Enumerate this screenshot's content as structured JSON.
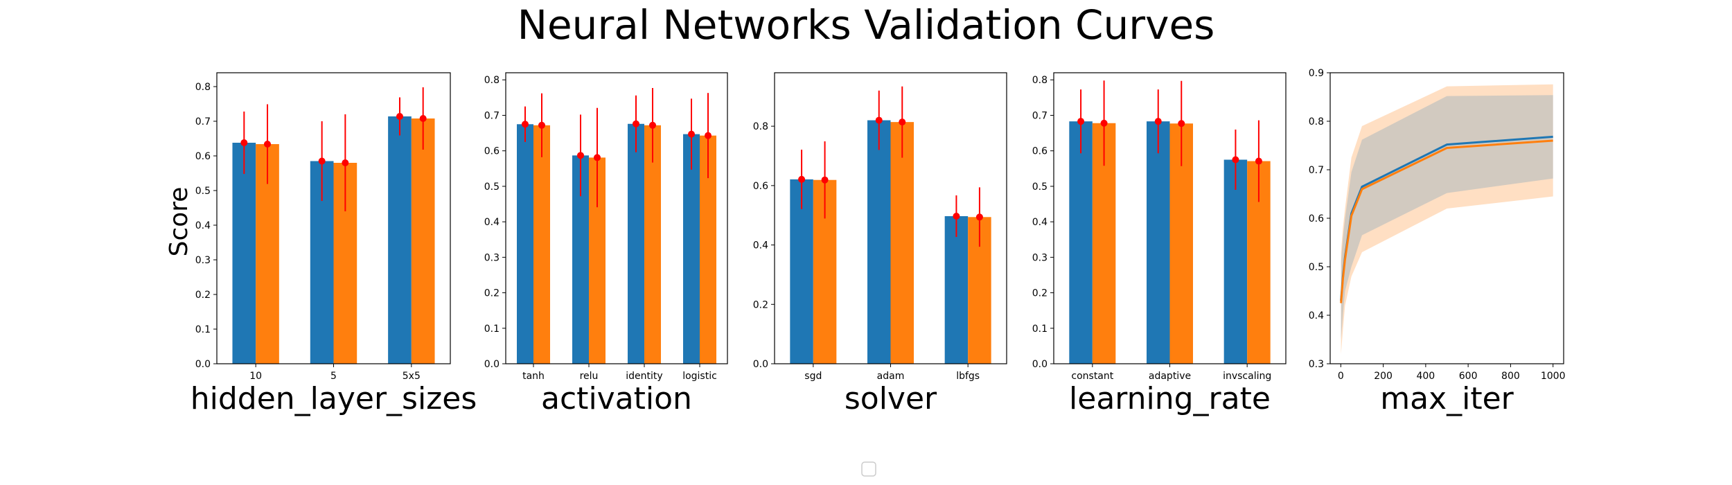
{
  "figure": {
    "title": "Neural Networks Validation Curves",
    "ylabel": "Score"
  },
  "colors": {
    "train": "#1f77b4",
    "test": "#ff7f0e",
    "error": "#ff0000"
  },
  "chart_data": [
    {
      "type": "bar",
      "xlabel": "hidden_layer_sizes",
      "categories": [
        "10",
        "5",
        "5x5"
      ],
      "ylim": [
        0,
        0.84
      ],
      "yticks": [
        "0.0",
        "0.1",
        "0.2",
        "0.3",
        "0.4",
        "0.5",
        "0.6",
        "0.7",
        "0.8"
      ],
      "series": [
        {
          "values": [
            0.638,
            0.585,
            0.714
          ],
          "errors": [
            0.09,
            0.115,
            0.055
          ]
        },
        {
          "values": [
            0.634,
            0.58,
            0.708
          ],
          "errors": [
            0.115,
            0.14,
            0.09
          ]
        }
      ]
    },
    {
      "type": "bar",
      "xlabel": "activation",
      "categories": [
        "tanh",
        "relu",
        "identity",
        "logistic"
      ],
      "ylim": [
        0,
        0.82
      ],
      "yticks": [
        "0.0",
        "0.1",
        "0.2",
        "0.3",
        "0.4",
        "0.5",
        "0.6",
        "0.7",
        "0.8"
      ],
      "series": [
        {
          "values": [
            0.675,
            0.587,
            0.676,
            0.647
          ],
          "errors": [
            0.05,
            0.115,
            0.08,
            0.1
          ]
        },
        {
          "values": [
            0.672,
            0.581,
            0.672,
            0.643
          ],
          "errors": [
            0.09,
            0.14,
            0.105,
            0.12
          ]
        }
      ]
    },
    {
      "type": "bar",
      "xlabel": "solver",
      "categories": [
        "sgd",
        "adam",
        "lbfgs"
      ],
      "ylim": [
        0,
        0.98
      ],
      "yticks": [
        "0.0",
        "0.2",
        "0.4",
        "0.6",
        "0.8"
      ],
      "series": [
        {
          "values": [
            0.621,
            0.82,
            0.497
          ],
          "errors": [
            0.1,
            0.1,
            0.07
          ]
        },
        {
          "values": [
            0.619,
            0.814,
            0.494
          ],
          "errors": [
            0.13,
            0.12,
            0.1
          ]
        }
      ]
    },
    {
      "type": "bar",
      "xlabel": "learning_rate",
      "categories": [
        "constant",
        "adaptive",
        "invscaling"
      ],
      "ylim": [
        0,
        0.82
      ],
      "yticks": [
        "0.0",
        "0.1",
        "0.2",
        "0.3",
        "0.4",
        "0.5",
        "0.6",
        "0.7",
        "0.8"
      ],
      "series": [
        {
          "values": [
            0.683,
            0.683,
            0.575
          ],
          "errors": [
            0.09,
            0.09,
            0.085
          ]
        },
        {
          "values": [
            0.678,
            0.677,
            0.571
          ],
          "errors": [
            0.12,
            0.12,
            0.115
          ]
        }
      ]
    },
    {
      "type": "line",
      "xlabel": "max_iter",
      "xlim": [
        -50,
        1050
      ],
      "ylim": [
        0.3,
        0.9
      ],
      "xticks": [
        "0",
        "200",
        "400",
        "600",
        "800",
        "1000"
      ],
      "yticks": [
        "0.3",
        "0.4",
        "0.5",
        "0.6",
        "0.7",
        "0.8",
        "0.9"
      ],
      "x": [
        1,
        10,
        20,
        50,
        100,
        500,
        1000
      ],
      "series": [
        {
          "values": [
            0.43,
            0.48,
            0.52,
            0.61,
            0.665,
            0.752,
            0.768
          ],
          "lower": [
            0.35,
            0.4,
            0.45,
            0.5,
            0.565,
            0.652,
            0.682
          ],
          "upper": [
            0.51,
            0.56,
            0.6,
            0.695,
            0.762,
            0.852,
            0.854
          ]
        },
        {
          "values": [
            0.425,
            0.475,
            0.515,
            0.605,
            0.66,
            0.745,
            0.76
          ],
          "lower": [
            0.32,
            0.37,
            0.42,
            0.48,
            0.53,
            0.62,
            0.645
          ],
          "upper": [
            0.53,
            0.58,
            0.62,
            0.725,
            0.79,
            0.872,
            0.876
          ]
        }
      ]
    }
  ]
}
